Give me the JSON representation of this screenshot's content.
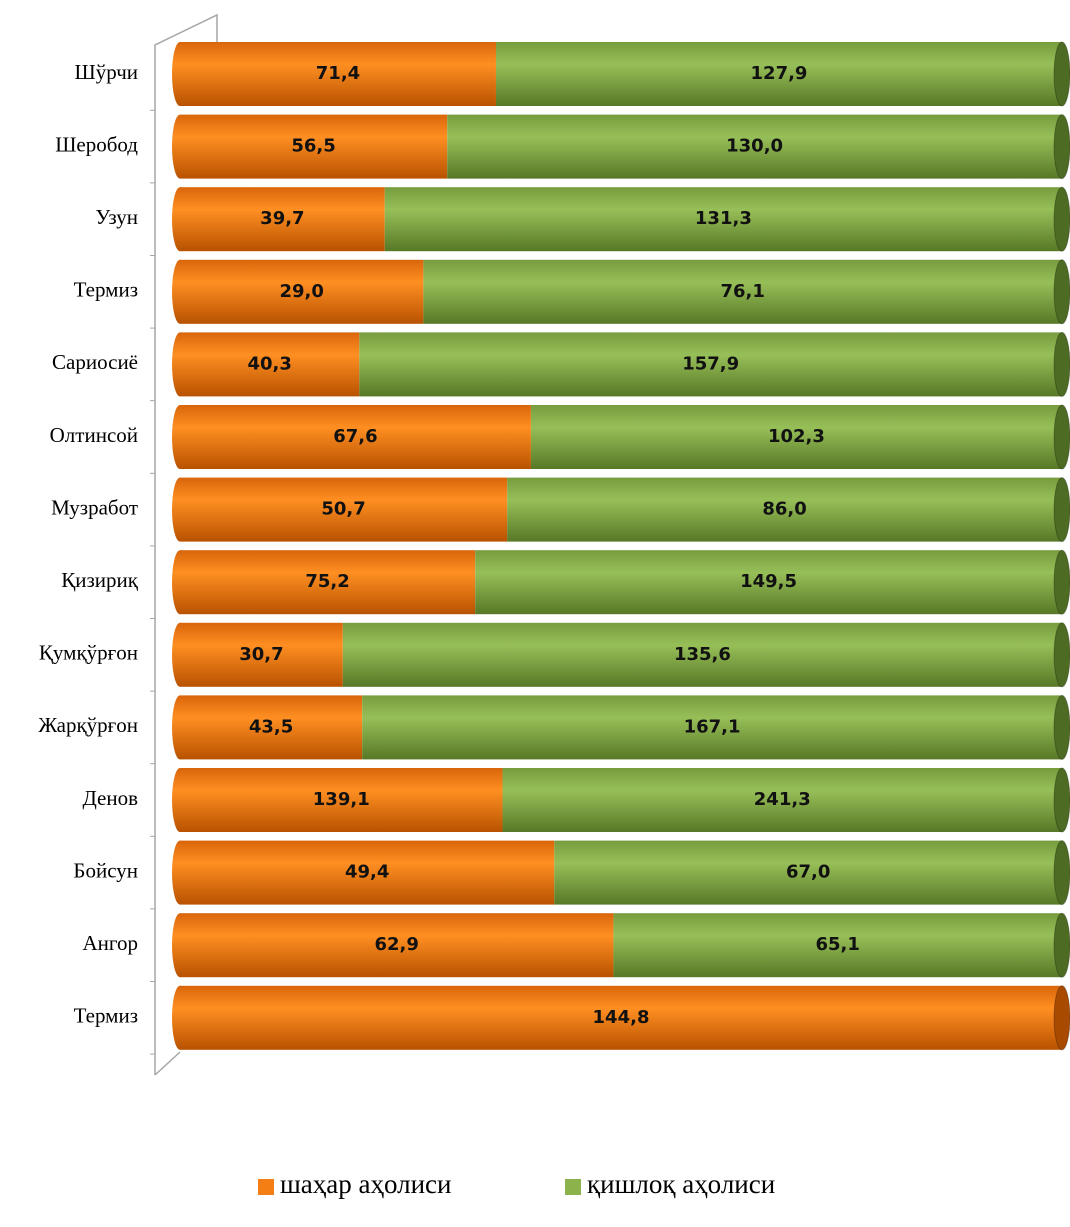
{
  "chart_data": {
    "type": "bar",
    "orientation": "horizontal",
    "stacking": "percent",
    "categories": [
      "Шўрчи",
      "Шеробод",
      "Узун",
      "Термиз",
      "Сариосиё",
      "Олтинсой",
      "Музработ",
      "Қизириқ",
      "Қумқўрғон",
      "Жарқўрғон",
      "Денов",
      "Бойсун",
      "Ангор",
      "Термиз"
    ],
    "series": [
      {
        "name": "шаҳар аҳолиси",
        "color": "#f47d14",
        "values": [
          71.4,
          56.5,
          39.7,
          29.0,
          40.3,
          67.6,
          50.7,
          75.2,
          30.7,
          43.5,
          139.1,
          49.4,
          62.9,
          144.8
        ],
        "value_labels": [
          "71,4",
          "56,5",
          "39,7",
          "29,0",
          "40,3",
          "67,6",
          "50,7",
          "75,2",
          "30,7",
          "43,5",
          "139,1",
          "49,4",
          "62,9",
          "144,8"
        ]
      },
      {
        "name": "қишлоқ аҳолиси",
        "color": "#8cb24c",
        "values": [
          127.9,
          130.0,
          131.3,
          76.1,
          157.9,
          102.3,
          86.0,
          149.5,
          135.6,
          167.1,
          241.3,
          67.0,
          65.1,
          null
        ],
        "value_labels": [
          "127,9",
          "130,0",
          "131,3",
          "76,1",
          "157,9",
          "102,3",
          "86,0",
          "149,5",
          "135,6",
          "167,1",
          "241,3",
          "67,0",
          "65,1",
          null
        ]
      }
    ],
    "legend": "bottom"
  }
}
